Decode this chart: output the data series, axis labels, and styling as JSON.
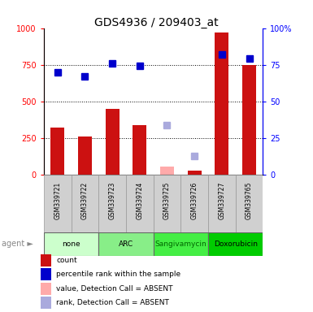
{
  "title": "GDS4936 / 209403_at",
  "samples": [
    "GSM339721",
    "GSM339722",
    "GSM339723",
    "GSM339724",
    "GSM339725",
    "GSM339726",
    "GSM339727",
    "GSM339765"
  ],
  "agents": [
    {
      "label": "none",
      "samples": [
        0,
        1
      ],
      "color": "#ccffcc"
    },
    {
      "label": "ARC",
      "samples": [
        2,
        3
      ],
      "color": "#88ee88"
    },
    {
      "label": "Sangivamycin",
      "samples": [
        4,
        5
      ],
      "color": "#44ee44"
    },
    {
      "label": "Doxorubicin",
      "samples": [
        6,
        7
      ],
      "color": "#00cc00"
    }
  ],
  "bar_values": [
    320,
    260,
    450,
    340,
    null,
    30,
    970,
    750
  ],
  "bar_absent": [
    null,
    null,
    null,
    null,
    55,
    null,
    null,
    null
  ],
  "percentile_values": [
    700,
    670,
    760,
    740,
    null,
    null,
    820,
    790
  ],
  "percentile_absent": [
    null,
    null,
    null,
    null,
    340,
    130,
    null,
    null
  ],
  "bar_color": "#cc1111",
  "bar_absent_color": "#ffaaaa",
  "percentile_color": "#0000cc",
  "percentile_absent_color": "#aaaadd",
  "ylim_left": [
    0,
    1000
  ],
  "ylim_right": [
    0,
    100
  ],
  "yticks_left": [
    0,
    250,
    500,
    750,
    1000
  ],
  "yticks_right": [
    0,
    25,
    50,
    75,
    100
  ],
  "grid_values": [
    250,
    500,
    750
  ],
  "bar_width": 0.5,
  "legend_items": [
    {
      "label": "count",
      "color": "#cc1111"
    },
    {
      "label": "percentile rank within the sample",
      "color": "#0000cc"
    },
    {
      "label": "value, Detection Call = ABSENT",
      "color": "#ffaaaa"
    },
    {
      "label": "rank, Detection Call = ABSENT",
      "color": "#aaaadd"
    }
  ]
}
